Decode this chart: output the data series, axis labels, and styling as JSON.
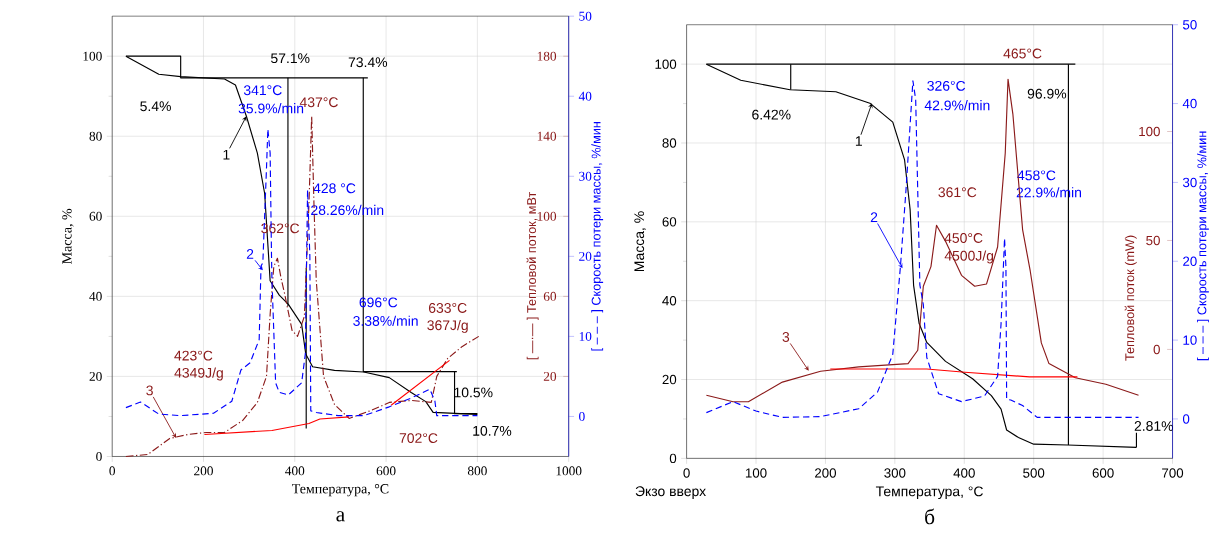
{
  "chart_data": [
    {
      "type": "line",
      "xlabel": "Температура, °C",
      "ylabel": "Масса, %",
      "y2label": "[ —·— ] Тепловой поток, мВт",
      "y3label": "[ – – – ] Скорость потери массы, %/мин",
      "xlim": [
        0,
        1000
      ],
      "xticks": [
        0,
        200,
        400,
        600,
        800,
        1000
      ],
      "ylim": [
        0,
        110
      ],
      "yticks": [
        0,
        20,
        40,
        60,
        80,
        100
      ],
      "y2lim": [
        -20,
        200
      ],
      "y2ticks": [
        20,
        60,
        100,
        140,
        180
      ],
      "y3lim": [
        -5,
        50
      ],
      "y3ticks": [
        0,
        10,
        20,
        30,
        40,
        50
      ],
      "grid": true,
      "series": [
        {
          "color": "#000000",
          "line_style": "solid",
          "x": [
            30,
            102,
            150,
            246,
            270,
            294,
            318,
            334,
            346,
            366,
            386,
            415,
            424,
            439,
            487,
            551,
            607,
            655,
            687,
            703,
            800
          ],
          "values": [
            100,
            95.5,
            94.9,
            94.3,
            92.8,
            85,
            75.8,
            65.7,
            43.9,
            40.3,
            38,
            33,
            25.6,
            22.4,
            21.5,
            21.1,
            19.7,
            16,
            13.7,
            11,
            10.5
          ]
        },
        {
          "color": "#0000ff",
          "line_style": "dashed",
          "axis": "y3",
          "x": [
            30,
            62,
            102,
            150,
            222,
            262,
            282,
            302,
            322,
            326,
            330,
            338,
            341,
            346,
            349,
            350,
            358,
            366,
            386,
            415,
            423,
            428,
            433,
            435,
            447,
            495,
            551,
            607,
            655,
            696,
            707,
            711,
            800
          ],
          "values": [
            1.1,
            1.8,
            0.3,
            0.1,
            0.4,
            1.9,
            5.8,
            6.7,
            9.6,
            18.8,
            19.2,
            31,
            35.9,
            32.9,
            20,
            17,
            4.2,
            3,
            2.7,
            4.2,
            7.8,
            28.3,
            20,
            0.7,
            0.5,
            0.1,
            0.1,
            1.2,
            2.3,
            3.4,
            1.9,
            0.1,
            0.1
          ]
        },
        {
          "color": "#8b1a1a",
          "line_style": "dashdot",
          "axis": "y2",
          "x": [
            30,
            78,
            126,
            166,
            206,
            246,
            286,
            318,
            338,
            346,
            354,
            362,
            370,
            378,
            394,
            406,
            421,
            431,
            437,
            442,
            447,
            463,
            487,
            519,
            567,
            607,
            655,
            699,
            711,
            735,
            767,
            803
          ],
          "values": [
            -20,
            -19,
            -11,
            -9,
            -8,
            -8,
            -2,
            7,
            20,
            51,
            75,
            79,
            69,
            61,
            43,
            40,
            50,
            106,
            150,
            106,
            68,
            20,
            6,
            -1,
            3,
            7,
            8,
            7,
            20,
            29,
            35,
            40
          ]
        },
        {
          "color": "#ff0000",
          "line_style": "solid",
          "axis": "y2",
          "x": [
            202,
            350,
            431,
            455,
            519,
            565,
            611,
            739
          ],
          "values": [
            -9,
            -7,
            -3.5,
            -1.3,
            -0.2,
            null,
            5.6,
            28
          ]
        },
        {
          "color": "#000000",
          "line_style": "solid",
          "x": [
            30,
            150,
            150,
            560
          ],
          "values": [
            100,
            100,
            94.6,
            94.6
          ]
        },
        {
          "color": "#000000",
          "line_style": "solid",
          "x": [
            385,
            385
          ],
          "values": [
            94.6,
            37.5
          ]
        },
        {
          "color": "#000000",
          "line_style": "solid",
          "x": [
            550,
            550,
            755
          ],
          "values": [
            94.6,
            21.2,
            21.2
          ]
        },
        {
          "color": "#000000",
          "line_style": "solid",
          "x": [
            750,
            750,
            800
          ],
          "values": [
            21.2,
            10.7,
            10.7
          ]
        },
        {
          "color": "#000000",
          "line_style": "solid",
          "x": [
            425,
            425
          ],
          "values": [
            47,
            7
          ]
        }
      ],
      "annotations": [
        "5.4%",
        "57.1%",
        "73.4%",
        "341°C",
        "35.9%/min",
        "437°C",
        "428  °C",
        "28.26%/min",
        "362°C",
        "696°C",
        "3.38%/min",
        "633°C",
        "367J/g",
        "423°C",
        "4349J/g",
        "10.5%",
        "702°C",
        "10.7%",
        {
          "text": "1",
          "x": 294,
          "y": 85
        },
        {
          "text": "2",
          "x": 330,
          "y": 46.5
        },
        {
          "text": "3",
          "x": 140,
          "y": 4.6
        },
        "а"
      ]
    },
    {
      "type": "line",
      "xlabel": "Температура, °C",
      "ylabel": "Масса, %",
      "y2label": "Тепловой поток (mW)",
      "y3label": "[ – – – ] Скорость потери массы, %/мин",
      "xlim": [
        0,
        700
      ],
      "xticks": [
        0,
        100,
        200,
        300,
        400,
        500,
        600,
        700
      ],
      "ylim": [
        0,
        110
      ],
      "yticks": [
        0,
        20,
        40,
        60,
        80,
        100
      ],
      "y2lim": [
        -50,
        149
      ],
      "y2ticks": [
        0,
        50,
        100
      ],
      "y3lim": [
        -5,
        50
      ],
      "y3ticks": [
        0,
        10,
        20,
        30,
        40,
        50
      ],
      "grid": true,
      "series": [
        {
          "color": "#000000",
          "line_style": "solid",
          "x": [
            28.5,
            78,
            149,
            215,
            264,
            297,
            314,
            322,
            327,
            335,
            346,
            373,
            412,
            439,
            453,
            461,
            478,
            500,
            549,
            648
          ],
          "values": [
            100,
            95.9,
            93.5,
            93,
            90.1,
            85.3,
            75.7,
            63.1,
            43.9,
            34.2,
            29.4,
            24.6,
            20.2,
            15.9,
            12.5,
            7.2,
            5.3,
            3.6,
            3.4,
            2.8
          ]
        },
        {
          "color": "#0000ff",
          "line_style": "dashed",
          "axis": "y3",
          "x": [
            28.5,
            67,
            100,
            138,
            193,
            248,
            275,
            297,
            308,
            316,
            326,
            330,
            336,
            341,
            346,
            363,
            396,
            429,
            448,
            453,
            458,
            460,
            461,
            467,
            484,
            505,
            651
          ],
          "values": [
            0.8,
            2.2,
            1,
            0.2,
            0.3,
            1.3,
            3.4,
            8.2,
            19.3,
            29,
            42.9,
            40.5,
            17,
            14.5,
            7.8,
            3.2,
            2.2,
            2.9,
            5.4,
            12.1,
            22.9,
            19.3,
            2.5,
            2.4,
            1.7,
            0.2,
            0.2
          ]
        },
        {
          "color": "#8b1a1a",
          "line_style": "solid",
          "axis": "y2",
          "x": [
            28.5,
            67,
            89,
            138,
            193,
            248,
            319,
            333,
            341,
            352,
            360,
            374,
            396,
            415,
            432,
            448,
            459,
            463,
            470,
            484,
            495,
            511,
            522,
            560,
            604,
            651
          ],
          "values": [
            -21,
            -24,
            -24,
            -15,
            -10,
            -8,
            -6.5,
            -0.4,
            29,
            38,
            57,
            49,
            34,
            29,
            30,
            47,
            90,
            124,
            108,
            55,
            36,
            3,
            -6.5,
            -13,
            -16,
            -21
          ]
        },
        {
          "color": "#ff0000",
          "line_style": "solid",
          "axis": "y2",
          "x": [
            207,
            346,
            401,
            494,
            563
          ],
          "values": [
            -9,
            -9,
            -10.5,
            -12.6,
            -12.6
          ]
        },
        {
          "color": "#000000",
          "line_style": "solid",
          "x": [
            28.5,
            560
          ],
          "values": [
            100,
            100
          ]
        },
        {
          "color": "#000000",
          "line_style": "solid",
          "x": [
            150,
            150
          ],
          "values": [
            100,
            93.5
          ]
        },
        {
          "color": "#000000",
          "line_style": "solid",
          "x": [
            550,
            550
          ],
          "values": [
            100,
            3.4
          ]
        },
        {
          "color": "#000000",
          "line_style": "solid",
          "x": [
            648,
            648
          ],
          "values": [
            6.5,
            2.8
          ]
        }
      ],
      "annotations": [
        "6.42%",
        "465°C",
        "96.9%",
        "326°C",
        "42.9%/min",
        "361°C",
        "450°C",
        "4500J/g",
        "458°C",
        "22.9%/min",
        "2.81%",
        {
          "text": "1",
          "x": 267,
          "y": 90.1
        },
        {
          "text": "2",
          "x": 311,
          "y": 48.2
        },
        {
          "text": "3",
          "x": 176,
          "y": 22.2
        },
        "Экзо вверх",
        "б"
      ]
    }
  ]
}
